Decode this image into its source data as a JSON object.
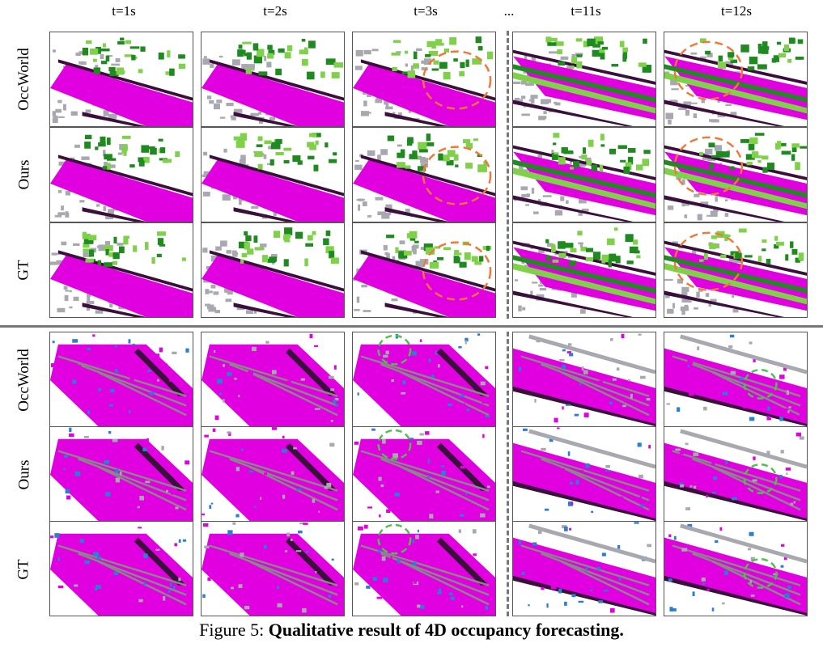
{
  "figure": {
    "columns": [
      "t=1s",
      "t=2s",
      "t=3s",
      "t=11s",
      "t=12s"
    ],
    "ellipsis": "...",
    "panels": [
      {
        "scene": "green",
        "rows": [
          "OccWorld",
          "Ours",
          "GT"
        ]
      },
      {
        "scene": "magenta",
        "rows": [
          "OccWorld",
          "Ours",
          "GT"
        ]
      }
    ],
    "caption_prefix": "Figure 5: ",
    "caption_title": "Qualitative result of 4D occupancy forecasting."
  },
  "colors": {
    "road": "#e000e0",
    "vegetation_dark": "#1f8a1f",
    "vegetation_light": "#7fd14a",
    "building": "#a8a8b0",
    "sidewalk": "#3b0f3b",
    "vehicle": "#2a7fd4",
    "highlight_orange": "#f07838",
    "highlight_green": "#4cc24c"
  }
}
